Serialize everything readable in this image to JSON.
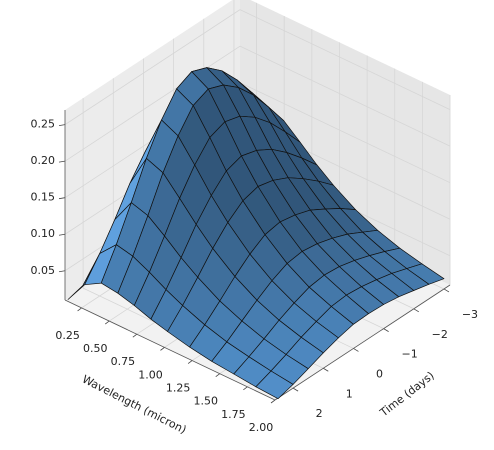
{
  "chart_data": {
    "type": "surface",
    "xlabel": "Wavelength (micron)",
    "ylabel": "Time (days)",
    "color": "#4f8bc4",
    "x": [
      0.1,
      0.25,
      0.4,
      0.55,
      0.7,
      0.85,
      1.0,
      1.2,
      1.4,
      1.6,
      1.8,
      2.0
    ],
    "y": [
      -3,
      -2.5,
      -2,
      -1.5,
      -1,
      -0.5,
      0,
      0.5,
      1,
      1.5,
      2,
      2.5
    ],
    "z": [
      [
        0.021,
        0.107,
        0.143,
        0.136,
        0.117,
        0.097,
        0.08,
        0.061,
        0.047,
        0.037,
        0.03,
        0.024
      ],
      [
        0.027,
        0.133,
        0.177,
        0.168,
        0.145,
        0.12,
        0.099,
        0.076,
        0.058,
        0.046,
        0.037,
        0.03
      ],
      [
        0.031,
        0.156,
        0.208,
        0.198,
        0.171,
        0.141,
        0.116,
        0.089,
        0.069,
        0.054,
        0.044,
        0.035
      ],
      [
        0.035,
        0.176,
        0.234,
        0.222,
        0.192,
        0.159,
        0.131,
        0.101,
        0.077,
        0.061,
        0.049,
        0.04
      ],
      [
        0.038,
        0.189,
        0.252,
        0.239,
        0.207,
        0.171,
        0.141,
        0.108,
        0.083,
        0.066,
        0.053,
        0.043
      ],
      [
        0.039,
        0.195,
        0.26,
        0.247,
        0.213,
        0.177,
        0.146,
        0.112,
        0.086,
        0.068,
        0.055,
        0.044
      ],
      [
        0.038,
        0.188,
        0.25,
        0.238,
        0.205,
        0.17,
        0.14,
        0.108,
        0.083,
        0.065,
        0.053,
        0.043
      ],
      [
        0.033,
        0.166,
        0.221,
        0.21,
        0.181,
        0.15,
        0.124,
        0.095,
        0.073,
        0.057,
        0.046,
        0.038
      ],
      [
        0.027,
        0.137,
        0.182,
        0.173,
        0.149,
        0.124,
        0.102,
        0.078,
        0.06,
        0.047,
        0.038,
        0.031
      ],
      [
        0.02,
        0.101,
        0.135,
        0.128,
        0.111,
        0.092,
        0.076,
        0.058,
        0.045,
        0.035,
        0.028,
        0.023
      ],
      [
        0.014,
        0.068,
        0.091,
        0.086,
        0.075,
        0.062,
        0.051,
        0.039,
        0.03,
        0.024,
        0.019,
        0.015
      ],
      [
        0.008,
        0.039,
        0.052,
        0.049,
        0.043,
        0.035,
        0.029,
        0.022,
        0.017,
        0.014,
        0.011,
        0.009
      ]
    ],
    "xlim": [
      0.1,
      2.0
    ],
    "ylim": [
      -3.2,
      2.6
    ],
    "zlim": [
      0.01,
      0.27
    ],
    "xticks": [
      0.25,
      {
        "value": 0.5,
        "label": "0.50"
      },
      0.75,
      {
        "value": 1.0,
        "label": "1.00"
      },
      1.25,
      {
        "value": 1.5,
        "label": "1.50"
      },
      1.75,
      {
        "value": 2.0,
        "label": "2.00"
      }
    ],
    "yticks": [
      {
        "value": -3,
        "label": "−3"
      },
      {
        "value": -2,
        "label": "−2"
      },
      {
        "value": -1,
        "label": "−1"
      },
      0,
      1,
      2
    ],
    "zticks": [
      0.05,
      {
        "value": 0.1,
        "label": "0.10"
      },
      0.15,
      {
        "value": 0.2,
        "label": "0.20"
      },
      0.25
    ],
    "grid": true
  }
}
